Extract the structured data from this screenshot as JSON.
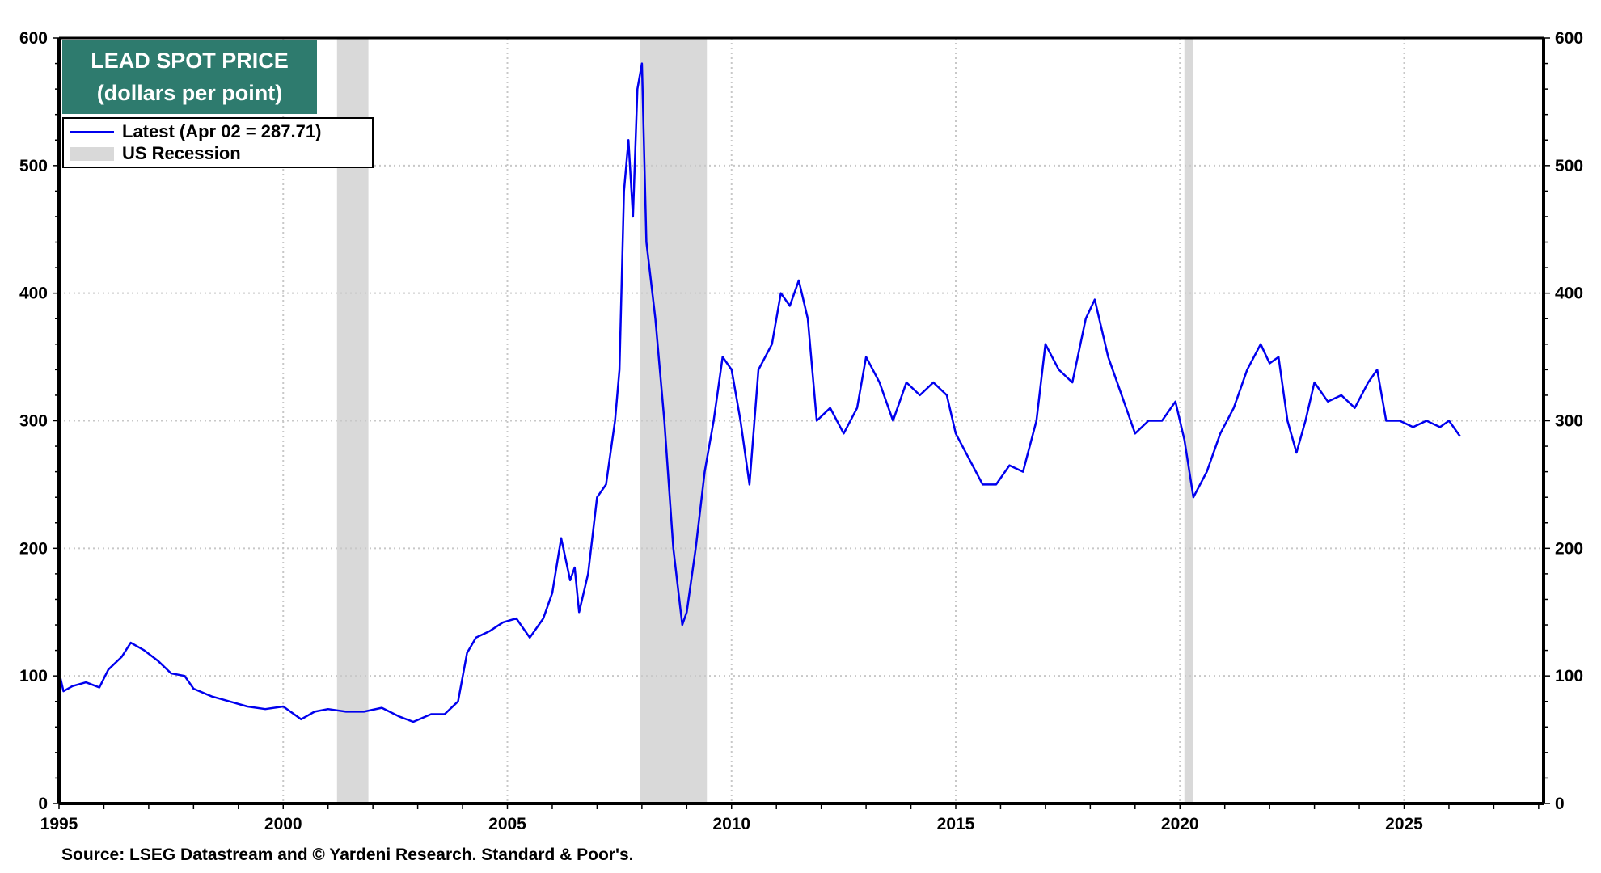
{
  "title": {
    "line1": "LEAD SPOT PRICE",
    "line2": "(dollars per point)",
    "bg_color": "#2e7b6e"
  },
  "legend": {
    "series_label": "Latest (Apr 02 = 287.71)",
    "recession_label": "US Recession"
  },
  "source": "Source: LSEG Datastream and © Yardeni Research. Standard & Poor's.",
  "colors": {
    "line": "#0000ee",
    "recession": "#d9d9d9",
    "grid": "#c8c8c8",
    "axis": "#000000"
  },
  "chart_data": {
    "type": "line",
    "title": "LEAD SPOT PRICE (dollars per point)",
    "xlabel": "",
    "ylabel": "",
    "xlim": [
      1995,
      2028
    ],
    "ylim": [
      0,
      600
    ],
    "y_ticks": [
      0,
      100,
      200,
      300,
      400,
      500,
      600
    ],
    "x_ticks": [
      "1995",
      "2000",
      "2005",
      "2010",
      "2015",
      "2020",
      "2025"
    ],
    "grid": true,
    "dual_y_axis": true,
    "legend_position": "top-left",
    "latest": {
      "date": "Apr 02",
      "value": 287.71
    },
    "recessions": [
      {
        "start": 2001.2,
        "end": 2001.9
      },
      {
        "start": 2007.95,
        "end": 2009.45
      },
      {
        "start": 2020.1,
        "end": 2020.3
      }
    ],
    "series": [
      {
        "name": "Lead Spot Price",
        "x": [
          1995.0,
          1995.1,
          1995.3,
          1995.6,
          1995.9,
          1996.1,
          1996.4,
          1996.6,
          1996.9,
          1997.2,
          1997.5,
          1997.8,
          1998.0,
          1998.4,
          1998.8,
          1999.2,
          1999.6,
          2000.0,
          2000.4,
          2000.7,
          2001.0,
          2001.4,
          2001.8,
          2002.2,
          2002.6,
          2002.9,
          2003.3,
          2003.6,
          2003.9,
          2004.1,
          2004.3,
          2004.6,
          2004.9,
          2005.2,
          2005.5,
          2005.8,
          2006.0,
          2006.2,
          2006.4,
          2006.5,
          2006.6,
          2006.8,
          2007.0,
          2007.2,
          2007.4,
          2007.5,
          2007.6,
          2007.7,
          2007.8,
          2007.9,
          2008.0,
          2008.1,
          2008.3,
          2008.5,
          2008.7,
          2008.9,
          2009.0,
          2009.2,
          2009.4,
          2009.6,
          2009.8,
          2010.0,
          2010.2,
          2010.4,
          2010.6,
          2010.9,
          2011.1,
          2011.3,
          2011.5,
          2011.7,
          2011.9,
          2012.2,
          2012.5,
          2012.8,
          2013.0,
          2013.3,
          2013.6,
          2013.9,
          2014.2,
          2014.5,
          2014.8,
          2015.0,
          2015.3,
          2015.6,
          2015.9,
          2016.2,
          2016.5,
          2016.8,
          2017.0,
          2017.3,
          2017.6,
          2017.9,
          2018.1,
          2018.4,
          2018.7,
          2019.0,
          2019.3,
          2019.6,
          2019.9,
          2020.1,
          2020.3,
          2020.6,
          2020.9,
          2021.2,
          2021.5,
          2021.8,
          2022.0,
          2022.2,
          2022.4,
          2022.6,
          2022.8,
          2023.0,
          2023.3,
          2023.6,
          2023.9,
          2024.2,
          2024.4,
          2024.6,
          2024.9,
          2025.2,
          2025.5,
          2025.8,
          2026.0,
          2026.25
        ],
        "values": [
          103,
          88,
          92,
          95,
          91,
          105,
          115,
          126,
          120,
          112,
          102,
          100,
          90,
          84,
          80,
          76,
          74,
          76,
          66,
          72,
          74,
          72,
          72,
          75,
          68,
          64,
          70,
          70,
          80,
          118,
          130,
          135,
          142,
          145,
          130,
          145,
          165,
          208,
          175,
          185,
          150,
          180,
          240,
          250,
          300,
          340,
          480,
          520,
          460,
          560,
          580,
          440,
          380,
          300,
          200,
          140,
          150,
          200,
          260,
          300,
          350,
          340,
          300,
          250,
          340,
          360,
          400,
          390,
          410,
          380,
          300,
          310,
          290,
          310,
          350,
          330,
          300,
          330,
          320,
          330,
          320,
          290,
          270,
          250,
          250,
          265,
          260,
          300,
          360,
          340,
          330,
          380,
          395,
          350,
          320,
          290,
          300,
          300,
          315,
          285,
          240,
          260,
          290,
          310,
          340,
          360,
          345,
          350,
          300,
          275,
          300,
          330,
          315,
          320,
          310,
          330,
          340,
          300,
          300,
          295,
          300,
          295,
          300,
          287.71
        ]
      }
    ]
  }
}
